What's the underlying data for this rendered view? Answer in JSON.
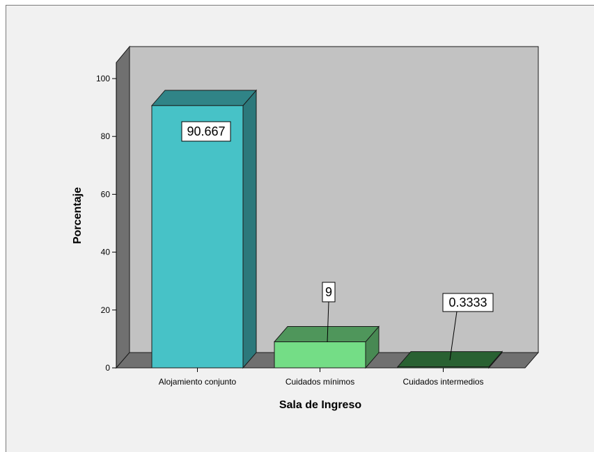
{
  "chart_data": {
    "type": "bar",
    "style": "3d",
    "categories": [
      "Alojamiento conjunto",
      "Cuidados mínimos",
      "Cuidados intermedios"
    ],
    "values": [
      90.667,
      9,
      0.3333
    ],
    "value_labels": [
      "90.667",
      "9",
      "0.3333"
    ],
    "colors": [
      "#47c2c7",
      "#74dd86",
      "#3c8f4a"
    ],
    "xlabel": "Sala de Ingreso",
    "ylabel": "Porcentaje",
    "ylim": [
      0,
      100
    ],
    "yticks": [
      0,
      20,
      40,
      60,
      80,
      100
    ],
    "grid": false,
    "legend": "none"
  }
}
